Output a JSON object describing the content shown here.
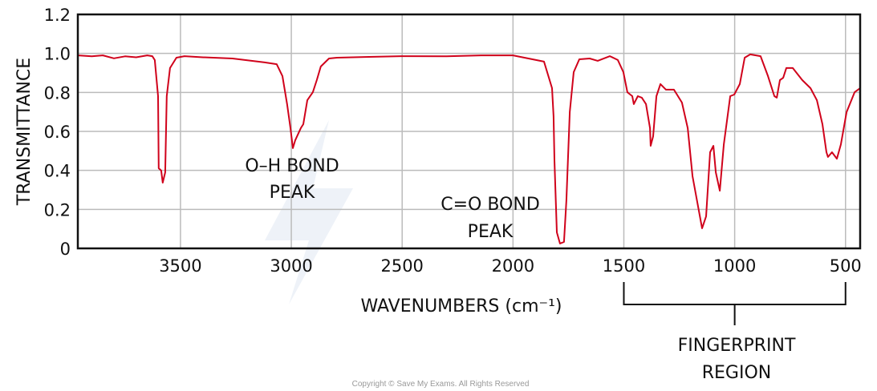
{
  "chart_data": {
    "type": "line",
    "title": "",
    "xlabel": "WAVENUMBERS (cm⁻¹)",
    "ylabel": "TRANSMITTANCE",
    "xlim": [
      3963,
      434
    ],
    "ylim": [
      0,
      1.2
    ],
    "x_reversed": true,
    "grid": true,
    "xticks": [
      3500,
      3000,
      2500,
      2000,
      1500,
      1000,
      500
    ],
    "yticks": [
      0,
      0.2,
      0.4,
      0.6,
      0.8,
      1.0,
      1.2
    ],
    "ytick_labels": [
      "0",
      "0.2",
      "0.4",
      "0.6",
      "0.8",
      "1.0",
      "1.2"
    ],
    "series": [
      {
        "name": "IR spectrum",
        "color": "#d0021b",
        "points": [
          [
            3963,
            0.99
          ],
          [
            3900,
            0.985
          ],
          [
            3850,
            0.99
          ],
          [
            3800,
            0.975
          ],
          [
            3750,
            0.985
          ],
          [
            3700,
            0.98
          ],
          [
            3650,
            0.99
          ],
          [
            3627,
            0.986
          ],
          [
            3616,
            0.966
          ],
          [
            3601,
            0.781
          ],
          [
            3598,
            0.411
          ],
          [
            3587,
            0.399
          ],
          [
            3580,
            0.337
          ],
          [
            3569,
            0.39
          ],
          [
            3562,
            0.781
          ],
          [
            3547,
            0.925
          ],
          [
            3518,
            0.978
          ],
          [
            3482,
            0.986
          ],
          [
            3400,
            0.98
          ],
          [
            3265,
            0.974
          ],
          [
            3120,
            0.954
          ],
          [
            3066,
            0.945
          ],
          [
            3040,
            0.884
          ],
          [
            3019,
            0.74
          ],
          [
            3004,
            0.617
          ],
          [
            2993,
            0.514
          ],
          [
            2982,
            0.555
          ],
          [
            2957,
            0.617
          ],
          [
            2946,
            0.637
          ],
          [
            2928,
            0.76
          ],
          [
            2903,
            0.801
          ],
          [
            2885,
            0.863
          ],
          [
            2867,
            0.933
          ],
          [
            2830,
            0.974
          ],
          [
            2794,
            0.978
          ],
          [
            2650,
            0.982
          ],
          [
            2505,
            0.986
          ],
          [
            2300,
            0.985
          ],
          [
            2143,
            0.99
          ],
          [
            2000,
            0.99
          ],
          [
            1860,
            0.958
          ],
          [
            1824,
            0.822
          ],
          [
            1817,
            0.678
          ],
          [
            1813,
            0.452
          ],
          [
            1802,
            0.082
          ],
          [
            1788,
            0.025
          ],
          [
            1770,
            0.033
          ],
          [
            1759,
            0.247
          ],
          [
            1744,
            0.699
          ],
          [
            1726,
            0.904
          ],
          [
            1701,
            0.97
          ],
          [
            1654,
            0.974
          ],
          [
            1618,
            0.962
          ],
          [
            1563,
            0.986
          ],
          [
            1527,
            0.966
          ],
          [
            1502,
            0.904
          ],
          [
            1484,
            0.801
          ],
          [
            1462,
            0.781
          ],
          [
            1455,
            0.74
          ],
          [
            1437,
            0.781
          ],
          [
            1419,
            0.773
          ],
          [
            1400,
            0.74
          ],
          [
            1382,
            0.617
          ],
          [
            1379,
            0.526
          ],
          [
            1368,
            0.575
          ],
          [
            1353,
            0.781
          ],
          [
            1335,
            0.843
          ],
          [
            1310,
            0.814
          ],
          [
            1274,
            0.814
          ],
          [
            1238,
            0.748
          ],
          [
            1212,
            0.617
          ],
          [
            1190,
            0.37
          ],
          [
            1147,
            0.103
          ],
          [
            1129,
            0.164
          ],
          [
            1111,
            0.493
          ],
          [
            1096,
            0.526
          ],
          [
            1085,
            0.39
          ],
          [
            1067,
            0.296
          ],
          [
            1049,
            0.534
          ],
          [
            1020,
            0.781
          ],
          [
            1002,
            0.789
          ],
          [
            977,
            0.843
          ],
          [
            955,
            0.978
          ],
          [
            930,
            0.995
          ],
          [
            883,
            0.986
          ],
          [
            850,
            0.884
          ],
          [
            821,
            0.781
          ],
          [
            810,
            0.773
          ],
          [
            796,
            0.863
          ],
          [
            781,
            0.875
          ],
          [
            767,
            0.925
          ],
          [
            738,
            0.925
          ],
          [
            695,
            0.863
          ],
          [
            658,
            0.822
          ],
          [
            629,
            0.76
          ],
          [
            604,
            0.637
          ],
          [
            586,
            0.493
          ],
          [
            579,
            0.469
          ],
          [
            561,
            0.493
          ],
          [
            539,
            0.46
          ],
          [
            521,
            0.534
          ],
          [
            495,
            0.699
          ],
          [
            459,
            0.801
          ],
          [
            434,
            0.822
          ]
        ]
      }
    ],
    "annotations": [
      {
        "lines": [
          "O–H BOND",
          "PEAK"
        ]
      },
      {
        "lines": [
          "C=O BOND",
          "PEAK"
        ]
      },
      {
        "lines": [
          "FINGERPRINT",
          "REGION"
        ],
        "range": [
          1500,
          500
        ]
      }
    ]
  },
  "watermark": [
    "Save My",
    "Exams"
  ],
  "copyright": "Copyright © Save My Exams. All Rights Reserved"
}
